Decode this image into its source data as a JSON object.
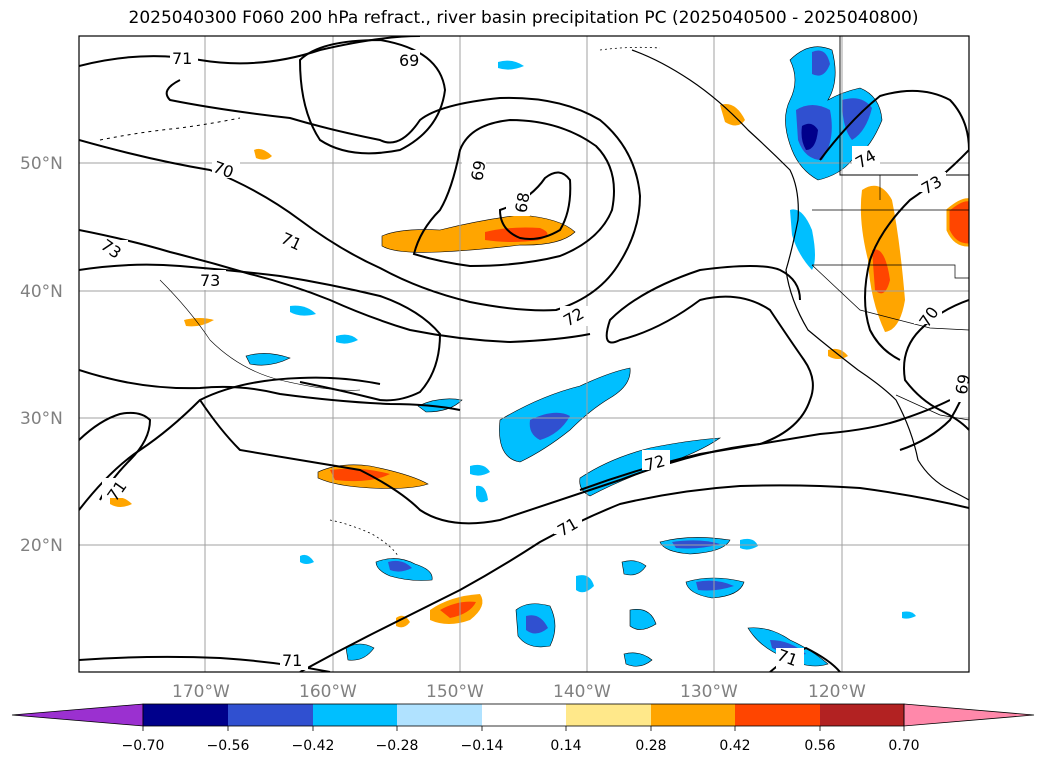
{
  "title": "2025040300 F060 200 hPa refract., river basin precipitation PC (2025040500 - 2025040800)",
  "map": {
    "lat_labels": [
      "50°N",
      "40°N",
      "30°N",
      "20°N"
    ],
    "lon_labels": [
      "170°W",
      "160°W",
      "150°W",
      "140°W",
      "130°W",
      "120°W"
    ],
    "contour_labels": [
      "71",
      "69",
      "70",
      "69",
      "68",
      "71",
      "73",
      "73",
      "72",
      "74",
      "73",
      "70",
      "69",
      "72",
      "71",
      "71",
      "71",
      "71"
    ]
  },
  "colorbar": {
    "ticks": [
      "−0.70",
      "−0.56",
      "−0.42",
      "−0.28",
      "−0.14",
      "0.14",
      "0.28",
      "0.42",
      "0.56",
      "0.70"
    ],
    "colors": [
      "#9b30d0",
      "#00008b",
      "#3050d0",
      "#00bfff",
      "#b0e2ff",
      "#ffffff",
      "#ffe88a",
      "#ffa500",
      "#ff4500",
      "#b22222",
      "#ff88aa"
    ]
  },
  "chart_data": {
    "type": "heatmap",
    "title": "2025040300 F060 200 hPa refract., river basin precipitation PC (2025040500 - 2025040800)",
    "xlabel": "",
    "ylabel": "",
    "x_ticks": [
      "170°W",
      "160°W",
      "150°W",
      "140°W",
      "130°W",
      "120°W"
    ],
    "y_ticks": [
      "50°N",
      "40°N",
      "30°N",
      "20°N"
    ],
    "contour_levels": [
      68,
      69,
      70,
      71,
      72,
      73,
      74
    ],
    "colorbar_levels": [
      -0.7,
      -0.56,
      -0.42,
      -0.28,
      -0.14,
      0.14,
      0.28,
      0.42,
      0.56,
      0.7
    ],
    "grid": true
  }
}
